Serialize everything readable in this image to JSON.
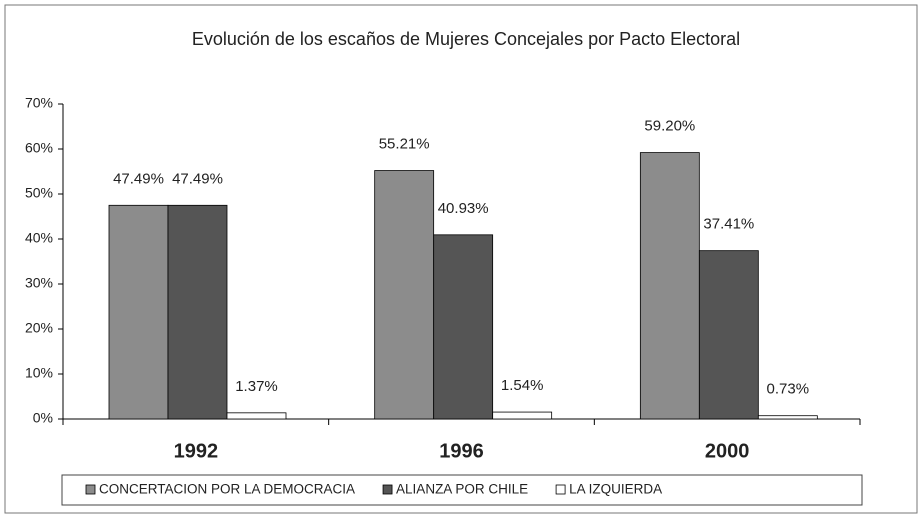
{
  "chart_data": {
    "type": "bar",
    "title": "Evolución de los escaños de Mujeres Concejales por Pacto Electoral",
    "categories": [
      "1992",
      "1996",
      "2000"
    ],
    "series": [
      {
        "name": "CONCERTACION POR LA DEMOCRACIA",
        "color": "#8c8c8c",
        "values": [
          47.49,
          55.21,
          59.2
        ],
        "value_labels": [
          "47.49%",
          "55.21%",
          "59.20%"
        ]
      },
      {
        "name": "ALIANZA POR CHILE",
        "color": "#555555",
        "values": [
          47.49,
          40.93,
          37.41
        ],
        "value_labels": [
          "47.49%",
          "40.93%",
          "37.41%"
        ]
      },
      {
        "name": "LA IZQUIERDA",
        "color": "#ffffff",
        "values": [
          1.37,
          1.54,
          0.73
        ],
        "value_labels": [
          "1.37%",
          "1.54%",
          "0.73%"
        ]
      }
    ],
    "ylim": [
      0,
      70
    ],
    "yticks": [
      {
        "value": 0,
        "label": "0%"
      },
      {
        "value": 10,
        "label": "10%"
      },
      {
        "value": 20,
        "label": "20%"
      },
      {
        "value": 30,
        "label": "30%"
      },
      {
        "value": 40,
        "label": "40%"
      },
      {
        "value": 50,
        "label": "50%"
      },
      {
        "value": 60,
        "label": "60%"
      },
      {
        "value": 70,
        "label": "70%"
      }
    ],
    "grid": false,
    "legend": "bottom"
  }
}
